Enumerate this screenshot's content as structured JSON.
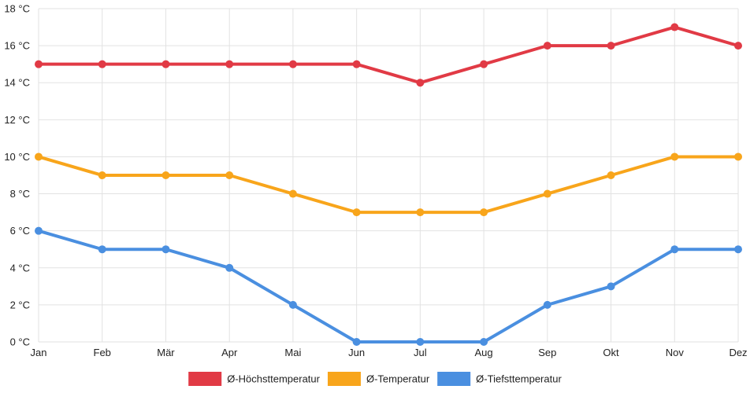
{
  "chart_data": {
    "type": "line",
    "title": "",
    "xlabel": "",
    "ylabel": "",
    "categories": [
      "Jan",
      "Feb",
      "Mär",
      "Apr",
      "Mai",
      "Jun",
      "Jul",
      "Aug",
      "Sep",
      "Okt",
      "Nov",
      "Dez"
    ],
    "ylim": [
      0,
      18
    ],
    "y_ticks": [
      0,
      2,
      4,
      6,
      8,
      10,
      12,
      14,
      16,
      18
    ],
    "y_unit": "°C",
    "grid": true,
    "legend_position": "bottom",
    "series": [
      {
        "name": "Ø-Höchsttemperatur",
        "color": "#e13a45",
        "values": [
          15,
          15,
          15,
          15,
          15,
          15,
          14,
          15,
          16,
          16,
          17,
          16
        ]
      },
      {
        "name": "Ø-Temperatur",
        "color": "#f8a51b",
        "values": [
          10,
          9,
          9,
          9,
          8,
          7,
          7,
          7,
          8,
          9,
          10,
          10
        ]
      },
      {
        "name": "Ø-Tiefsttemperatur",
        "color": "#4a8fe0",
        "values": [
          6,
          5,
          5,
          4,
          2,
          0,
          0,
          0,
          2,
          3,
          5,
          5
        ]
      }
    ]
  }
}
